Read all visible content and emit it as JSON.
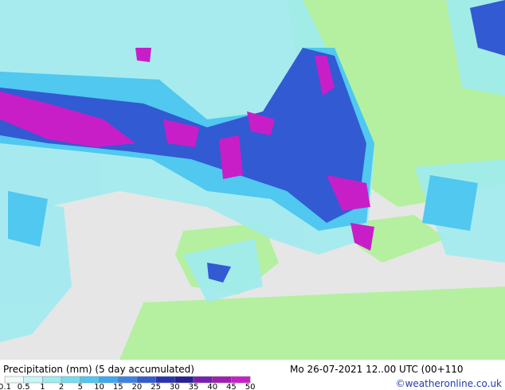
{
  "header": {
    "title": "Precipitation (mm) (5 day accumulated)",
    "timestamp": "Mo 26-07-2021 12..00 UTC (00+110",
    "credit": "©weatheronline.co.uk"
  },
  "legend": {
    "levels": [
      0.1,
      0.5,
      1,
      2,
      5,
      10,
      15,
      20,
      25,
      30,
      35,
      40,
      45,
      50
    ],
    "colors": [
      "#f0fafa",
      "#c8f5f5",
      "#a0ebf0",
      "#78dcf0",
      "#50c8f0",
      "#3caaf0",
      "#3c82e6",
      "#325ad2",
      "#2832b4",
      "#281e96",
      "#781eb4",
      "#a01eb4",
      "#c81ec8"
    ]
  }
}
